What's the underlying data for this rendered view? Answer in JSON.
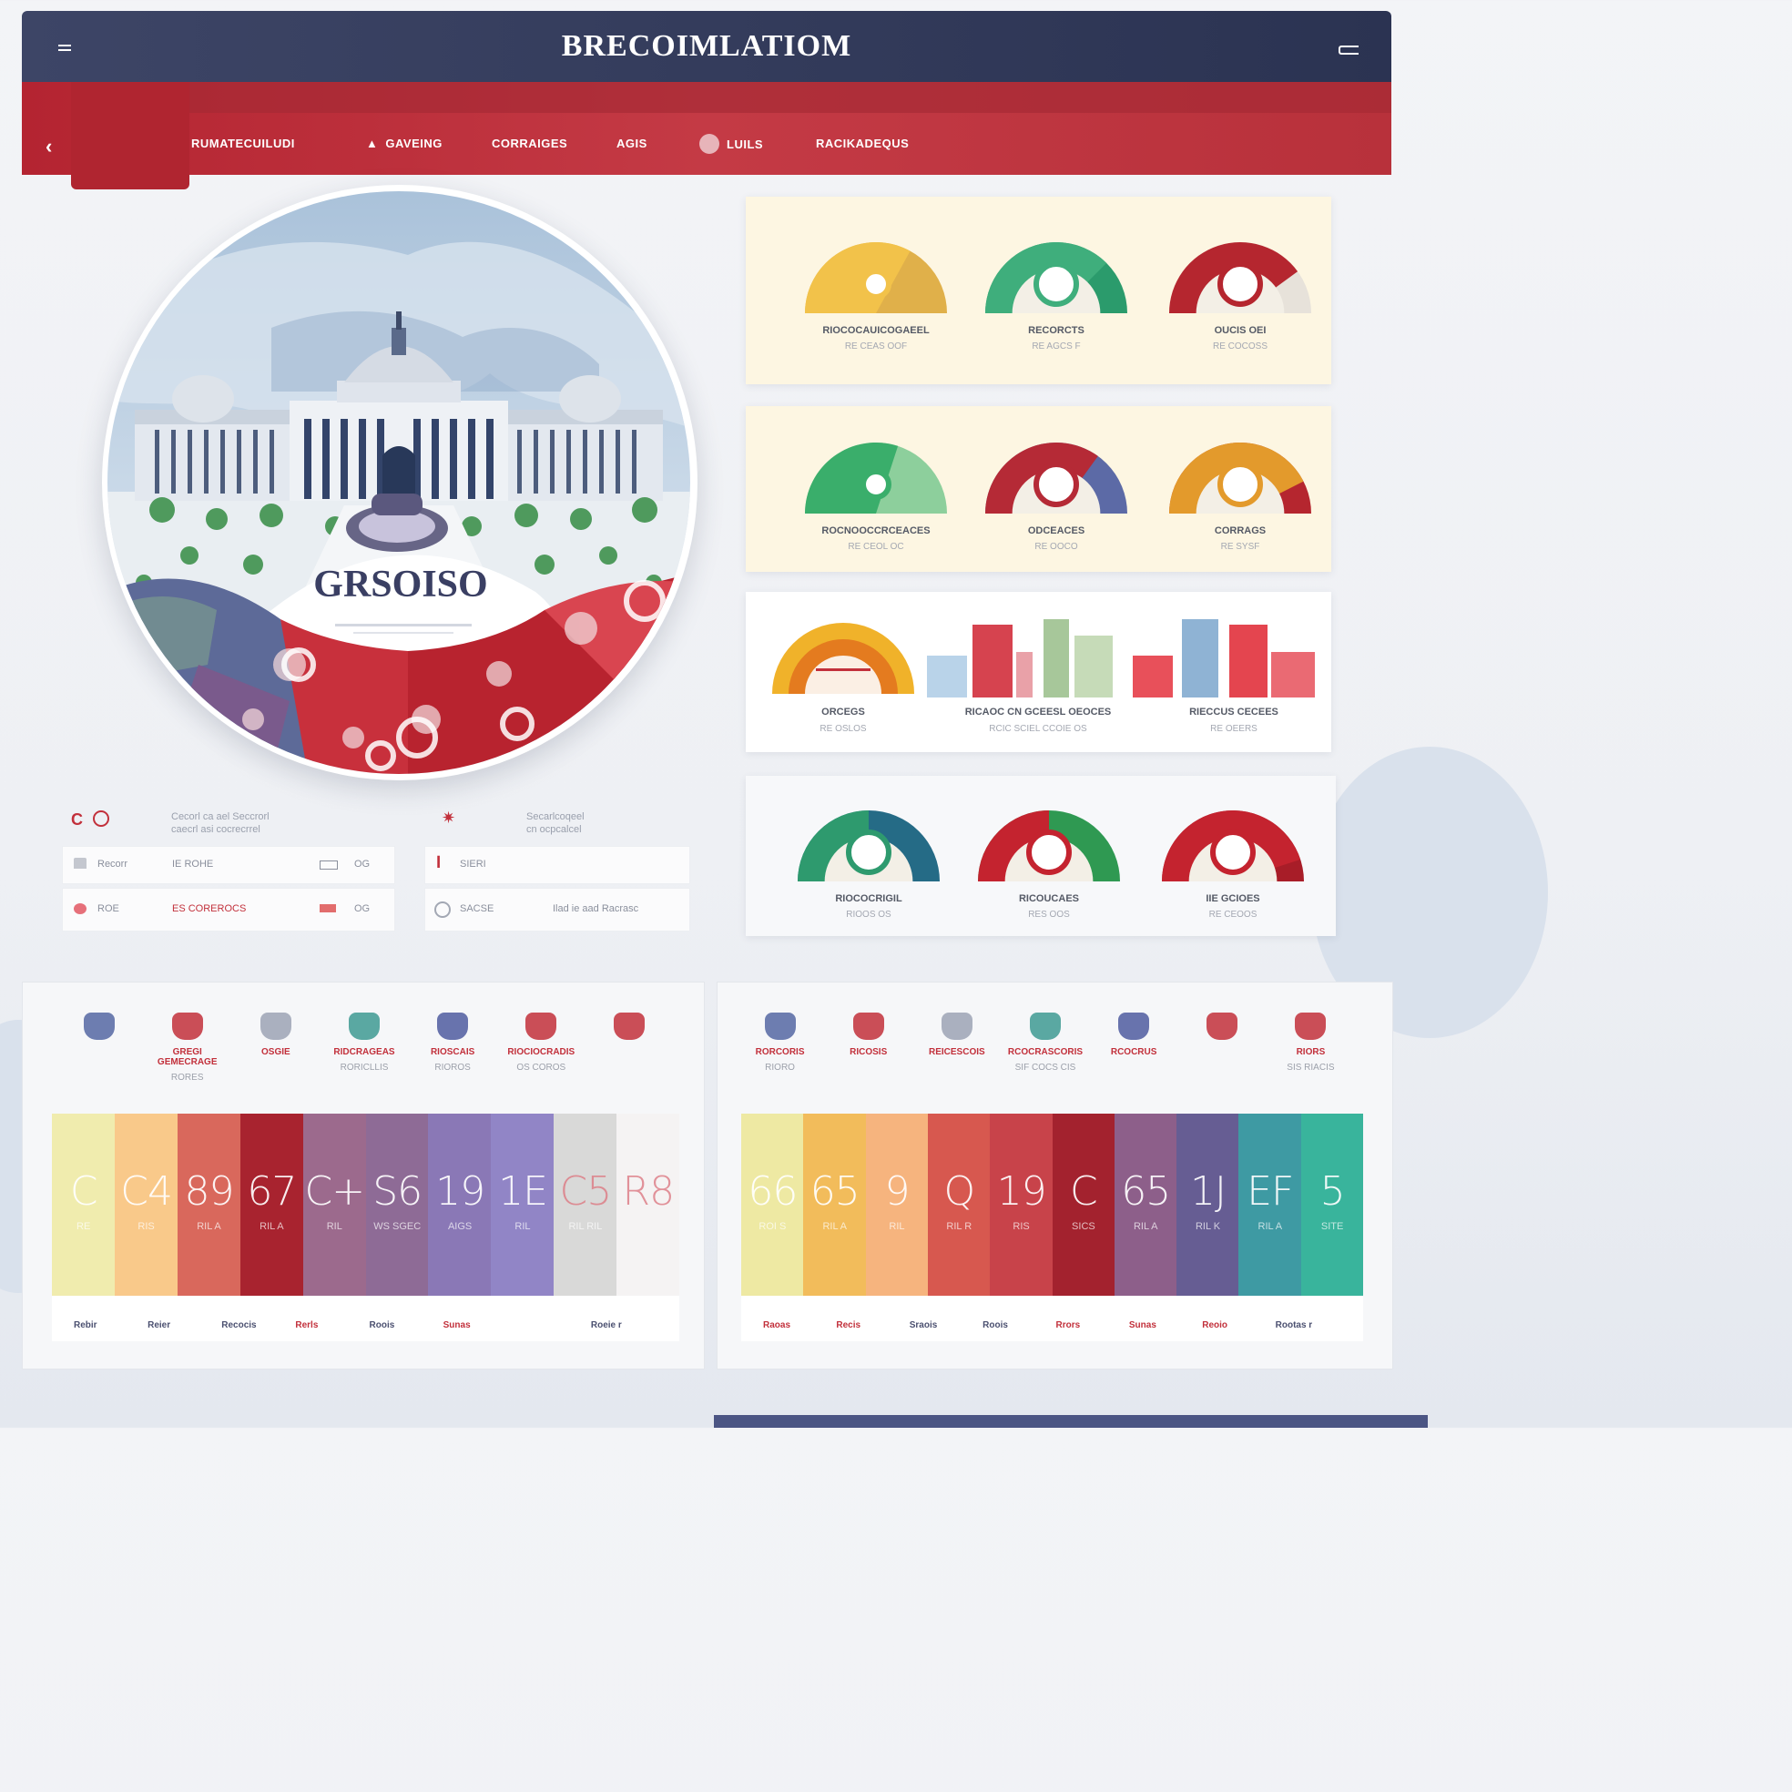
{
  "header": {
    "title": "BRECOIMLATIOM"
  },
  "nav": {
    "items": [
      {
        "label": "RUMATECUILUDI"
      },
      {
        "label": "GAVEING"
      },
      {
        "label": "CORRAIGES"
      },
      {
        "label": "AGIS"
      },
      {
        "label": "LUILS"
      },
      {
        "label": "RACIKADEQUS"
      }
    ]
  },
  "hero": {
    "label": "GRSOISO"
  },
  "info": {
    "left_title": "C",
    "left_text": "Cecorl ca ael Seccrorl\ncaecrl asi cocrecrrel",
    "mid_text": "Secarlcoqeel\ncn ocpcalcel",
    "rows_left": [
      {
        "a": "Recorr",
        "b": "IE ROHE",
        "c": "OG"
      },
      {
        "a": "ROE",
        "b": "ES COREROCS",
        "c": "OG"
      }
    ],
    "rows_right": [
      {
        "a": "SIERI"
      },
      {
        "a": "SACSE",
        "b": "Ilad ie aad Racrasc"
      }
    ]
  },
  "gauges": {
    "row1": [
      {
        "label": "RIOCOCAUICOGAEEL",
        "sub": "RE CEAS OOF",
        "color_a": "#f2c24a",
        "color_b": "#e0b04a",
        "value": 0.66
      },
      {
        "label": "RECORCTS",
        "sub": "RE AGCS F",
        "color_a": "#3fae7c",
        "color_b": "#2b9b6c",
        "value": 0.75
      },
      {
        "label": "OUCIS OEI",
        "sub": "RE COCOSS",
        "color_a": "#b5262f",
        "color_b": "#e7e2da",
        "value": 0.8
      }
    ],
    "row2": [
      {
        "label": "ROCNOOCCRCEACES",
        "sub": "RE CEOL OC",
        "color_a": "#3aae6b",
        "color_b": "#8dcf9c",
        "value": 0.6
      },
      {
        "label": "ODCEACES",
        "sub": "RE OOCO",
        "color_a": "#b52a36",
        "color_b": "#5c6aa6",
        "value": 0.7
      },
      {
        "label": "CORRAGS",
        "sub": "RE SYSF",
        "color_a": "#e39a2c",
        "color_b": "#b5262f",
        "value": 0.85
      }
    ],
    "row3": [
      {
        "label": "ORCEGS",
        "sub": "RE OSLOS",
        "color_a": "#f0b22a",
        "color_b": "#e47b1f"
      },
      {
        "label": "RICAOC CN GCEESL OEOCES",
        "sub": "RCIC SCIEL CCOIE OS"
      },
      {
        "label": "RIECCUS CECEES",
        "sub": "RE OEERS"
      }
    ],
    "row4": [
      {
        "label": "RIOCOCRIGIL",
        "sub": "RIOOS OS",
        "color_a": "#2e9a6e",
        "color_b": "#256b86",
        "value": 0.5
      },
      {
        "label": "RICOUCAES",
        "sub": "RES OOS",
        "color_a": "#c4232f",
        "color_b": "#2f9952",
        "value": 0.5
      },
      {
        "label": "IIE GCIOES",
        "sub": "RE CEOOS",
        "color_a": "#c4232f",
        "color_b": "#a81d28",
        "value": 0.9
      }
    ]
  },
  "left_panel": {
    "icons": [
      {
        "name": "hook-icon",
        "label": "",
        "sub": ""
      },
      {
        "name": "heart-icon",
        "label": "GREGI GEMECRAGE",
        "sub": "RORES"
      },
      {
        "name": "stethoscope-icon",
        "label": "OSGIE",
        "sub": ""
      },
      {
        "name": "shield-icon",
        "label": "RIDCRAGEAS",
        "sub": "RORICLLIS"
      },
      {
        "name": "folder-icon",
        "label": "RIOSCAIS",
        "sub": "RIOROS"
      },
      {
        "name": "microscope-icon",
        "label": "RIOCIOCRADIS",
        "sub": "OS COROS"
      },
      {
        "name": "heart-flag-icon",
        "label": "",
        "sub": ""
      }
    ],
    "bars": [
      {
        "num": "C",
        "sub": "RE",
        "color": "#f0ecae"
      },
      {
        "num": "C4",
        "sub": "RIS",
        "color": "#f9c98a"
      },
      {
        "num": "89",
        "sub": "RIL A",
        "color": "#d9685c"
      },
      {
        "num": "67",
        "sub": "RIL A",
        "color": "#a8232f"
      },
      {
        "num": "C+",
        "sub": "RIL",
        "color": "#9c6a8d"
      },
      {
        "num": "S6",
        "sub": "WS SGEC",
        "color": "#8e6b96"
      },
      {
        "num": "19",
        "sub": "AIGS",
        "color": "#8a78b6"
      },
      {
        "num": "1E",
        "sub": "RIL",
        "color": "#9185c6"
      },
      {
        "num": "C5",
        "sub": "RIL RIL",
        "color": "#d9d9d8"
      },
      {
        "num": "R8",
        "sub": "",
        "color": "#f5f3f3"
      }
    ],
    "axis": [
      "Rebir",
      "Reier",
      "Recocis",
      "Rerls",
      "Roois",
      "Sunas",
      "",
      "Roeie r"
    ]
  },
  "right_panel": {
    "icons": [
      {
        "name": "lamp-icon",
        "label": "RORCORIS",
        "sub": "RIORO"
      },
      {
        "name": "pipe-icon",
        "label": "RICOSIS",
        "sub": ""
      },
      {
        "name": "bottle-icon",
        "label": "REICESCOIS",
        "sub": ""
      },
      {
        "name": "syringe-icon",
        "label": "RCOCRASCORIS",
        "sub": "SIF COCS CIS"
      },
      {
        "name": "helicopter-icon",
        "label": "RCOCRUS",
        "sub": ""
      },
      {
        "name": "thermometer-icon",
        "label": "",
        "sub": ""
      },
      {
        "name": "circle-icon",
        "label": "RIORS",
        "sub": "SIS RIACIS"
      }
    ],
    "bars": [
      {
        "num": "66",
        "sub": "ROI S",
        "color": "#eee9a3"
      },
      {
        "num": "65",
        "sub": "RIL A",
        "color": "#f2bc5b"
      },
      {
        "num": "9",
        "sub": "RIL",
        "color": "#f6b47e"
      },
      {
        "num": "Q",
        "sub": "RIL R",
        "color": "#d7584f"
      },
      {
        "num": "19",
        "sub": "RIS",
        "color": "#c8434a"
      },
      {
        "num": "C",
        "sub": "SICS",
        "color": "#a3222e"
      },
      {
        "num": "65",
        "sub": "RIL A",
        "color": "#8d5f8a"
      },
      {
        "num": "1J",
        "sub": "RIL K",
        "color": "#665d93"
      },
      {
        "num": "EF",
        "sub": "RIL A",
        "color": "#3e9aa3"
      },
      {
        "num": "5",
        "sub": "SITE",
        "color": "#39b49c"
      }
    ],
    "axis": [
      "Raoas",
      "Recis",
      "Sraois",
      "Roois",
      "Rrors",
      "Sunas",
      "Reoio",
      "Rootas r"
    ]
  }
}
